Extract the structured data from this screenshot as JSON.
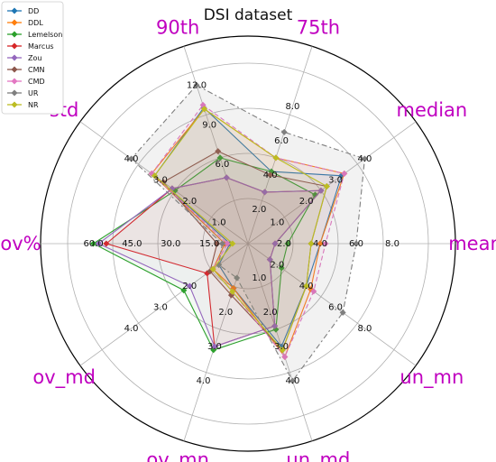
{
  "chart_data": {
    "type": "radar",
    "title": "DSI dataset",
    "axes": [
      "90th",
      "75th",
      "median",
      "mean",
      "un_mn",
      "un_md",
      "ov_mn",
      "ov_md",
      "ov%",
      "std"
    ],
    "axis_max": [
      13.0,
      10.0,
      5.0,
      10.0,
      10.0,
      5.0,
      5.0,
      5.0,
      70.0,
      5.0
    ],
    "tick_labels": [
      [
        "6.0",
        "9.0",
        "12.0"
      ],
      [
        "2.0",
        "4.0",
        "6.0",
        "8.0"
      ],
      [
        "1.0",
        "2.0",
        "3.0",
        "4.0"
      ],
      [
        "2.0",
        "4.0",
        "6.0",
        "8.0"
      ],
      [
        "2.0",
        "4.0",
        "6.0",
        "8.0"
      ],
      [
        "1.0",
        "2.0",
        "3.0",
        "4.0"
      ],
      [
        "2.0",
        "3.0",
        "4.0"
      ],
      [
        "2.0",
        "3.0",
        "4.0"
      ],
      [
        "15.0",
        "30.0",
        "45.0",
        "60.0"
      ],
      [
        "1.0",
        "2.0",
        "3.0",
        "4.0"
      ]
    ],
    "series": [
      {
        "name": "DD",
        "color": "#1f77b4",
        "values": [
          10.3,
          4.2,
          3.2,
          4.0,
          4.0,
          3.0,
          1.3,
          1.0,
          7.0,
          3.2
        ]
      },
      {
        "name": "DDL",
        "color": "#ff7f0e",
        "values": [
          10.2,
          5.0,
          3.3,
          4.0,
          4.3,
          3.3,
          1.3,
          1.2,
          9.0,
          3.3
        ]
      },
      {
        "name": "Lemelson",
        "color": "#2ca02c",
        "values": [
          6.5,
          4.2,
          2.3,
          2.2,
          2.3,
          2.5,
          3.1,
          2.2,
          60.0,
          2.5
        ]
      },
      {
        "name": "Marcus",
        "color": "#d62728",
        "values": [
          5.0,
          3.0,
          2.5,
          1.5,
          1.5,
          2.4,
          3.0,
          1.4,
          55.0,
          2.6
        ]
      },
      {
        "name": "Zou",
        "color": "#9467bd",
        "values": [
          5.0,
          3.0,
          2.5,
          1.5,
          1.5,
          2.4,
          3.0,
          2.0,
          58.0,
          2.6
        ]
      },
      {
        "name": "CMN",
        "color": "#8c564b",
        "values": [
          7.0,
          4.0,
          2.7,
          3.5,
          4.0,
          3.1,
          1.5,
          1.3,
          12.0,
          2.9
        ]
      },
      {
        "name": "CMD",
        "color": "#e377c2",
        "values": [
          10.5,
          5.0,
          3.3,
          4.3,
          4.5,
          3.3,
          1.4,
          1.2,
          8.0,
          3.3
        ]
      },
      {
        "name": "UR",
        "color": "#7f7f7f",
        "values": [
          12.0,
          6.5,
          4.0,
          6.0,
          6.5,
          4.0,
          1.0,
          1.0,
          10.0,
          4.0
        ]
      },
      {
        "name": "NR",
        "color": "#bcbd22",
        "values": [
          10.2,
          5.0,
          2.7,
          3.5,
          4.0,
          3.1,
          1.4,
          1.2,
          6.0,
          3.2
        ]
      }
    ],
    "legend": "top-left",
    "grid": true
  }
}
